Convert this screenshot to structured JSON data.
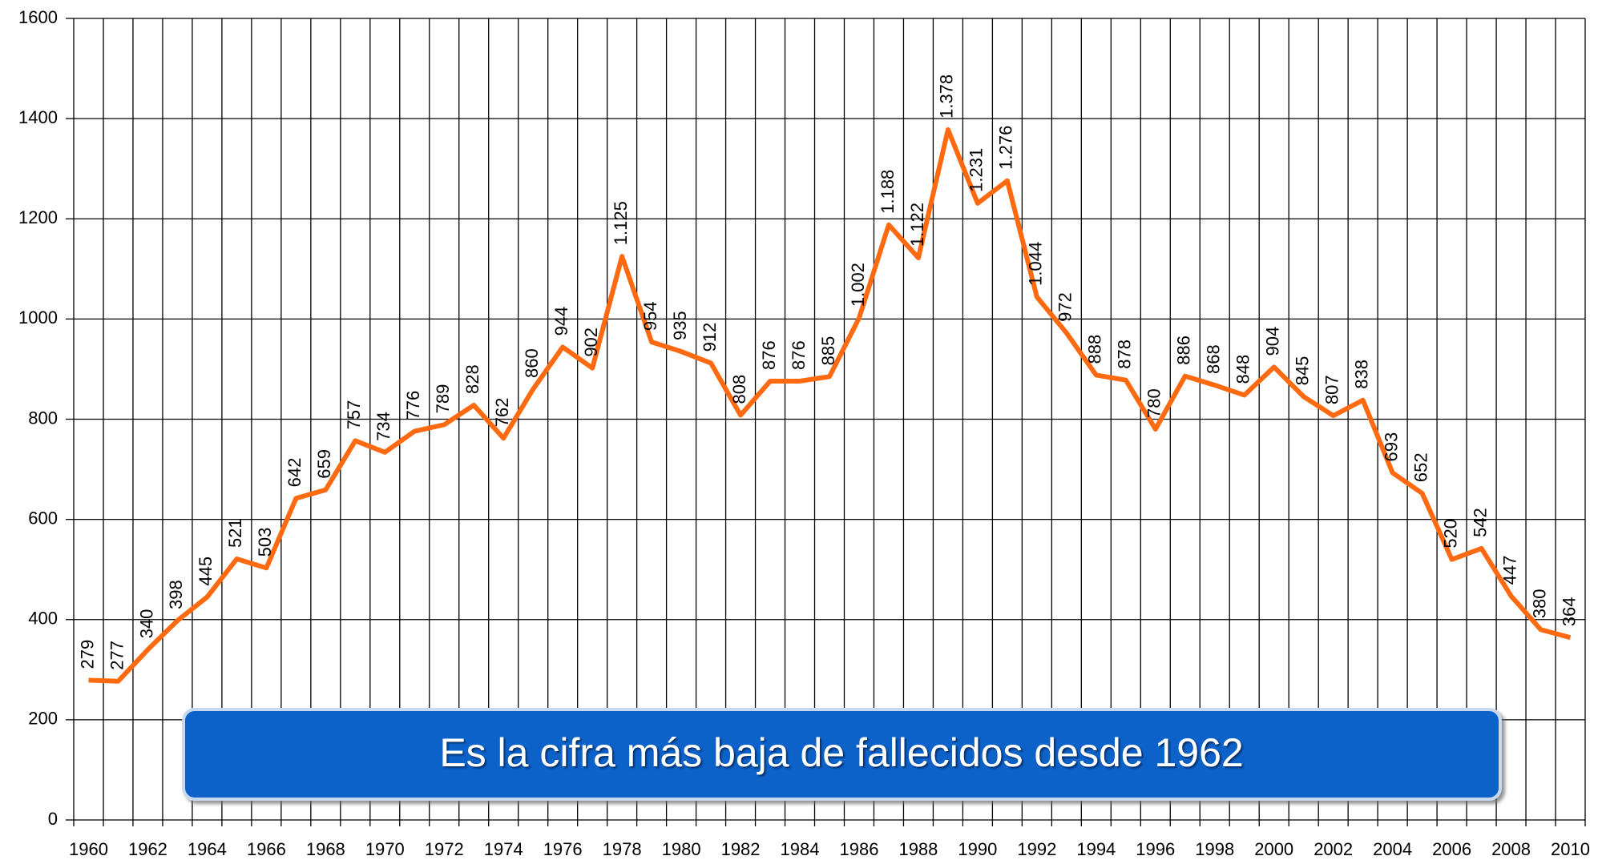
{
  "chart_data": {
    "type": "line",
    "annotation": "Es la cifra más baja de fallecidos desde 1962",
    "categories": [
      "1960",
      null,
      "1962",
      null,
      "1964",
      null,
      "1966",
      null,
      "1968",
      null,
      "1970",
      null,
      "1972",
      null,
      "1974",
      null,
      "1976",
      null,
      "1978",
      null,
      "1980",
      null,
      "1982",
      null,
      "1984",
      null,
      "1986",
      null,
      "1988",
      null,
      "1990",
      null,
      "1992",
      null,
      "1994",
      null,
      "1996",
      null,
      "1998",
      null,
      "2000",
      null,
      "2002",
      null,
      "2004",
      null,
      "2006",
      null,
      "2008",
      null,
      "2010"
    ],
    "series": [
      {
        "color": "#ff6a10",
        "values": [
          279,
          277,
          340,
          398,
          445,
          521,
          503,
          642,
          659,
          757,
          734,
          776,
          789,
          828,
          762,
          860,
          944,
          902,
          1125,
          954,
          935,
          912,
          808,
          876,
          876,
          885,
          1002,
          1188,
          1122,
          1378,
          1231,
          1276,
          1044,
          972,
          888,
          878,
          780,
          886,
          868,
          848,
          904,
          845,
          807,
          838,
          693,
          652,
          520,
          542,
          447,
          380,
          364
        ],
        "value_labels": [
          "279",
          "277",
          "340",
          "398",
          "445",
          "521",
          "503",
          "642",
          "659",
          "757",
          "734",
          "776",
          "789",
          "828",
          "762",
          "860",
          "944",
          "902",
          "1.125",
          "954",
          "935",
          "912",
          "808",
          "876",
          "876",
          "885",
          "1.002",
          "1.188",
          "1.122",
          "1.378",
          "1.231",
          "1.276",
          "1.044",
          "972",
          "888",
          "878",
          "780",
          "886",
          "868",
          "848",
          "904",
          "845",
          "807",
          "838",
          "693",
          "652",
          "520",
          "542",
          "447",
          "380",
          "364"
        ]
      }
    ],
    "ylim": [
      0,
      1600
    ],
    "yticks": [
      0,
      200,
      400,
      600,
      800,
      1000,
      1200,
      1400,
      1600
    ],
    "grid": true
  }
}
